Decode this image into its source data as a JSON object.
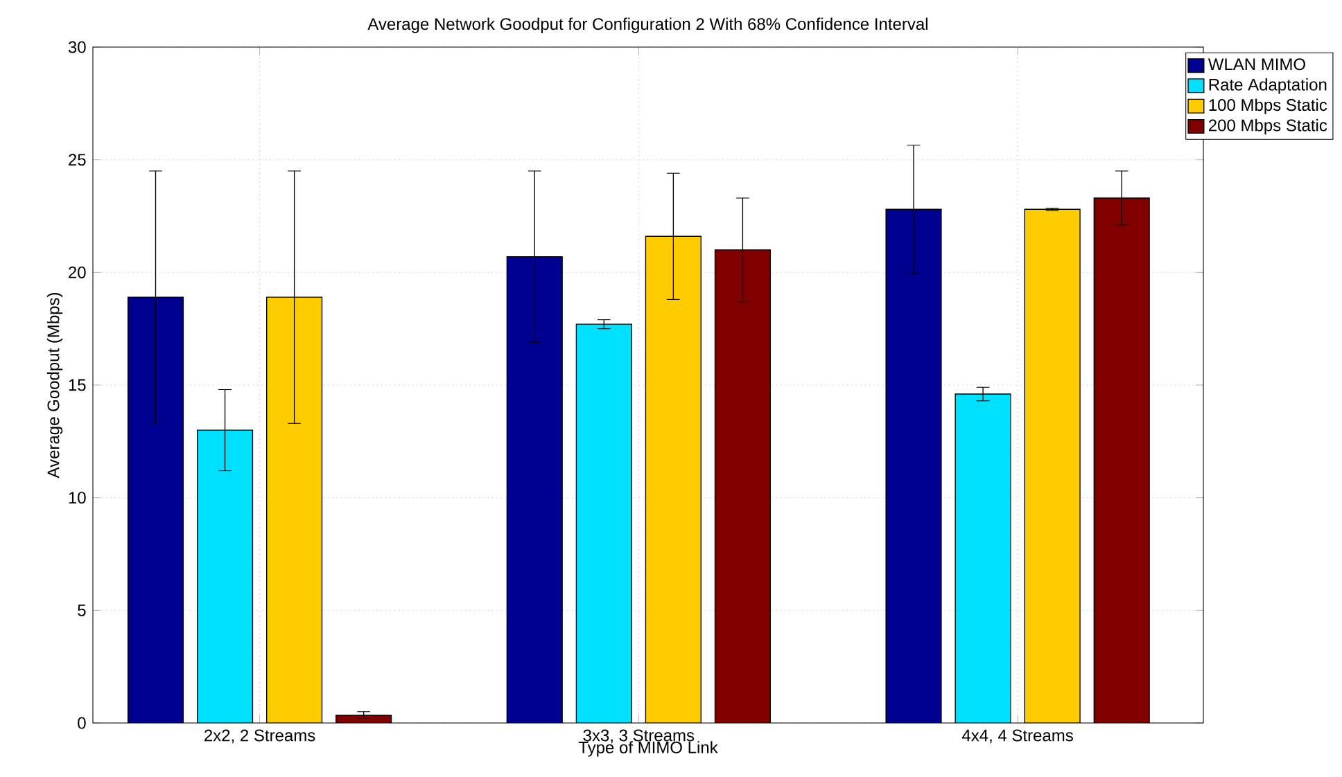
{
  "chart_data": {
    "type": "bar",
    "title": "Average Network Goodput for Configuration 2 With 68% Confidence Interval",
    "xlabel": "Type of MIMO Link",
    "ylabel": "Average Goodput (Mbps)",
    "categories": [
      "2x2, 2 Streams",
      "3x3, 3 Streams",
      "4x4, 4 Streams"
    ],
    "series": [
      {
        "name": "WLAN MIMO",
        "color": "#000090",
        "values": [
          18.9,
          20.7,
          22.8
        ],
        "errors": [
          5.6,
          3.8,
          2.85
        ]
      },
      {
        "name": "Rate Adaptation",
        "color": "#00e0ff",
        "values": [
          13.0,
          17.7,
          14.6
        ],
        "errors": [
          1.8,
          0.2,
          0.3
        ]
      },
      {
        "name": "100 Mbps Static",
        "color": "#ffcc00",
        "values": [
          18.9,
          21.6,
          22.8
        ],
        "errors": [
          5.6,
          2.8,
          0.05
        ]
      },
      {
        "name": "200 Mbps Static",
        "color": "#800000",
        "values": [
          0.35,
          21.0,
          23.3
        ],
        "errors": [
          0.15,
          2.3,
          1.2
        ]
      }
    ],
    "ylim": [
      0,
      30
    ],
    "yticks": [
      0,
      5,
      10,
      15,
      20,
      25,
      30
    ],
    "grid": true,
    "legend": "top right"
  }
}
